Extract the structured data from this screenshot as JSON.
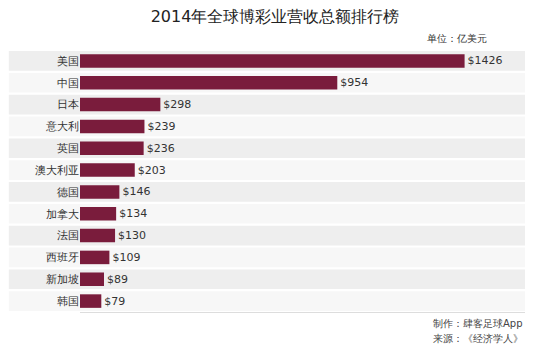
{
  "chart_data": {
    "type": "bar",
    "orientation": "horizontal",
    "title": "2014年全球博彩业营收总额排行榜",
    "subtitle": "单位：亿美元",
    "annotations": [
      "制作：肆客足球App",
      "来源：《经济学人》"
    ],
    "categories": [
      "美国",
      "中国",
      "日本",
      "意大利",
      "英国",
      "澳大利亚",
      "德国",
      "加拿大",
      "法国",
      "西班牙",
      "新加坡",
      "韩国"
    ],
    "values": [
      1426,
      954,
      298,
      239,
      236,
      203,
      146,
      134,
      130,
      109,
      89,
      79
    ],
    "value_labels": [
      "$1426",
      "$954",
      "$298",
      "$239",
      "$236",
      "$203",
      "$146",
      "$134",
      "$130",
      "$109",
      "$89",
      "$79"
    ],
    "data_labels": true,
    "color": "#7a1c3c",
    "xlim": [
      0,
      1650
    ],
    "tick_labels": "y",
    "grid": false
  }
}
